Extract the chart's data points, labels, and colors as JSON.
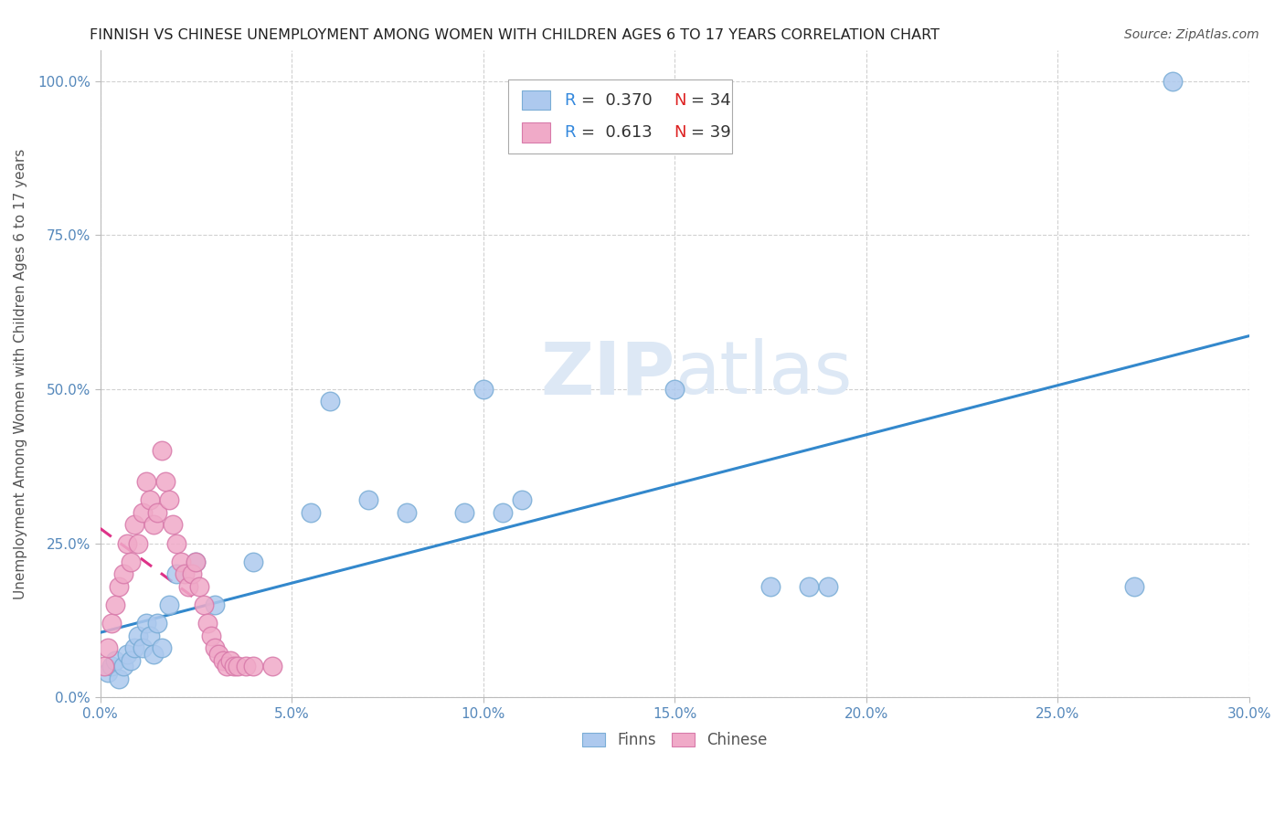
{
  "title": "FINNISH VS CHINESE UNEMPLOYMENT AMONG WOMEN WITH CHILDREN AGES 6 TO 17 YEARS CORRELATION CHART",
  "source": "Source: ZipAtlas.com",
  "ylabel": "Unemployment Among Women with Children Ages 6 to 17 years",
  "xlabel_ticks": [
    "0.0%",
    "5.0%",
    "10.0%",
    "15.0%",
    "20.0%",
    "25.0%",
    "30.0%"
  ],
  "xlabel_vals": [
    0.0,
    0.05,
    0.1,
    0.15,
    0.2,
    0.25,
    0.3
  ],
  "ylabel_ticks": [
    "0.0%",
    "25.0%",
    "50.0%",
    "75.0%",
    "100.0%"
  ],
  "ylabel_vals": [
    0.0,
    0.25,
    0.5,
    0.75,
    1.0
  ],
  "xlim": [
    0.0,
    0.3
  ],
  "ylim": [
    0.0,
    1.05
  ],
  "finns_R": 0.37,
  "finns_N": 34,
  "chinese_R": 0.613,
  "chinese_N": 39,
  "finns_color": "#adc9ee",
  "finns_edge_color": "#7aadd6",
  "chinese_color": "#f0aac8",
  "chinese_edge_color": "#d87aaa",
  "trend_finns_color": "#3388cc",
  "trend_chinese_color": "#dd3388",
  "background_color": "#ffffff",
  "grid_color": "#cccccc",
  "title_color": "#222222",
  "label_color": "#555555",
  "tick_color": "#5588bb",
  "legend_R_color": "#3388dd",
  "legend_N_color": "#dd2222",
  "watermark_color": "#dde8f5",
  "finns_x": [
    0.002,
    0.003,
    0.004,
    0.005,
    0.006,
    0.007,
    0.008,
    0.009,
    0.01,
    0.011,
    0.012,
    0.013,
    0.014,
    0.015,
    0.016,
    0.018,
    0.02,
    0.025,
    0.03,
    0.04,
    0.055,
    0.06,
    0.07,
    0.08,
    0.095,
    0.1,
    0.105,
    0.11,
    0.15,
    0.175,
    0.185,
    0.19,
    0.27,
    0.28
  ],
  "finns_y": [
    0.04,
    0.05,
    0.06,
    0.03,
    0.05,
    0.07,
    0.06,
    0.08,
    0.1,
    0.08,
    0.12,
    0.1,
    0.07,
    0.12,
    0.08,
    0.15,
    0.2,
    0.22,
    0.15,
    0.22,
    0.3,
    0.48,
    0.32,
    0.3,
    0.3,
    0.5,
    0.3,
    0.32,
    0.5,
    0.18,
    0.18,
    0.18,
    0.18,
    1.0
  ],
  "chinese_x": [
    0.001,
    0.002,
    0.003,
    0.004,
    0.005,
    0.006,
    0.007,
    0.008,
    0.009,
    0.01,
    0.011,
    0.012,
    0.013,
    0.014,
    0.015,
    0.016,
    0.017,
    0.018,
    0.019,
    0.02,
    0.021,
    0.022,
    0.023,
    0.024,
    0.025,
    0.026,
    0.027,
    0.028,
    0.029,
    0.03,
    0.031,
    0.032,
    0.033,
    0.034,
    0.035,
    0.036,
    0.038,
    0.04,
    0.045
  ],
  "chinese_y": [
    0.05,
    0.08,
    0.12,
    0.15,
    0.18,
    0.2,
    0.25,
    0.22,
    0.28,
    0.25,
    0.3,
    0.35,
    0.32,
    0.28,
    0.3,
    0.4,
    0.35,
    0.32,
    0.28,
    0.25,
    0.22,
    0.2,
    0.18,
    0.2,
    0.22,
    0.18,
    0.15,
    0.12,
    0.1,
    0.08,
    0.07,
    0.06,
    0.05,
    0.06,
    0.05,
    0.05,
    0.05,
    0.05,
    0.05
  ],
  "chinese_trend_x": [
    0.0,
    0.025
  ],
  "finns_trend_x": [
    0.0,
    0.3
  ]
}
